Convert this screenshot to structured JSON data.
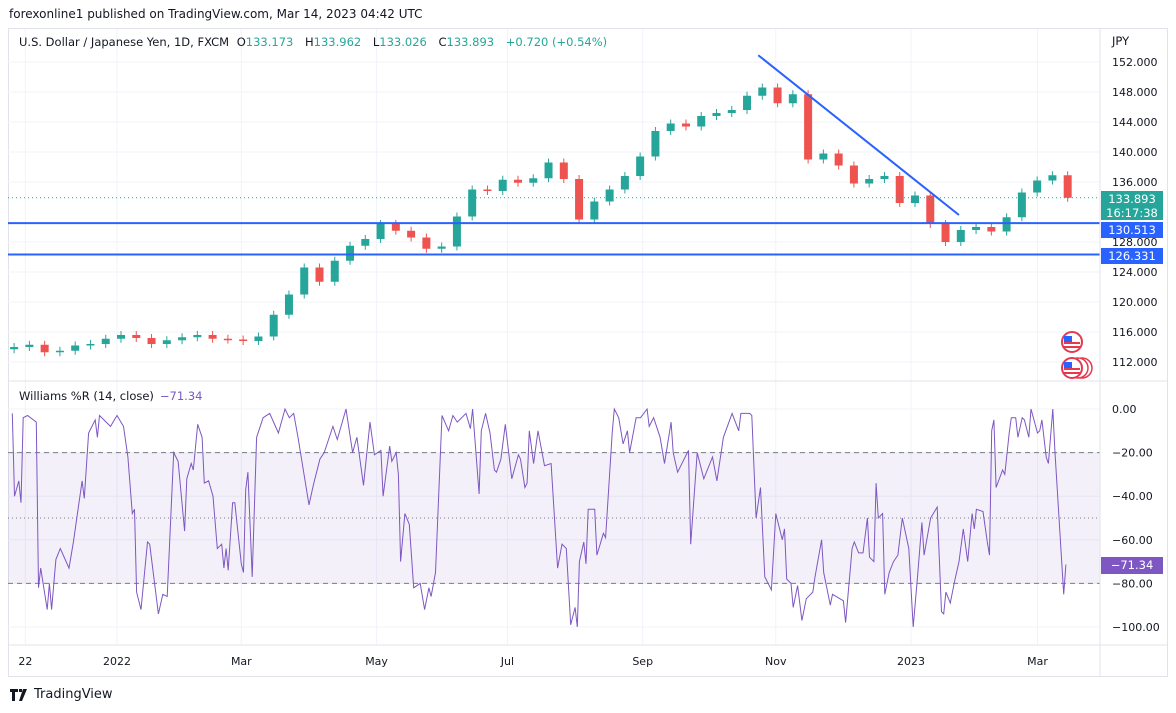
{
  "publisher_line": "forexonline1 published on TradingView.com, Mar 14, 2023 04:42 UTC",
  "legend": {
    "symbol": "U.S. Dollar / Japanese Yen, 1D, FXCM",
    "o_label": "O",
    "o": "133.173",
    "h_label": "H",
    "h": "133.962",
    "l_label": "L",
    "l": "133.026",
    "c_label": "C",
    "c": "133.893",
    "change": "+0.720 (+0.54%)"
  },
  "currency": "JPY",
  "last_price_label": "133.893",
  "countdown": "16:17:38",
  "williams_legend": {
    "name": "Williams %R (14, close)",
    "value": "−71.34"
  },
  "williams_last_label": "−71.34",
  "footer": {
    "brand": "TradingView"
  },
  "colors": {
    "up": "#26a69a",
    "down": "#ef5350",
    "drawing": "#2962ff",
    "williams": "#7e57c2",
    "grid": "#f0f3fa"
  },
  "icons": [
    "tradingview-logo-icon",
    "us-flag-event-icon",
    "us-flag-events-stack-icon"
  ],
  "chart_data": [
    {
      "type": "candlestick",
      "interval": "1D (rendered as weekly closes)",
      "y_ticks": [
        "152.000",
        "148.000",
        "144.000",
        "140.000",
        "136.000",
        "128.000",
        "124.000",
        "120.000",
        "116.000",
        "112.000"
      ],
      "y_tick_values": [
        152,
        148,
        144,
        140,
        136,
        128,
        124,
        120,
        116,
        112
      ],
      "ylim": [
        110,
        153.5
      ],
      "x_ticks": [
        {
          "label": "22",
          "date": "2021-11-22"
        },
        {
          "label": "2022",
          "date": "2022-01-03"
        },
        {
          "label": "Mar",
          "date": "2022-03-01"
        },
        {
          "label": "May",
          "date": "2022-05-02"
        },
        {
          "label": "Jul",
          "date": "2022-07-01"
        },
        {
          "label": "Sep",
          "date": "2022-09-01"
        },
        {
          "label": "Nov",
          "date": "2022-11-01"
        },
        {
          "label": "2023",
          "date": "2023-01-02"
        },
        {
          "label": "Mar",
          "date": "2023-03-01"
        }
      ],
      "weeks": [
        "2021-11-15",
        "2021-11-22",
        "2021-11-29",
        "2021-12-06",
        "2021-12-13",
        "2021-12-20",
        "2021-12-27",
        "2022-01-03",
        "2022-01-10",
        "2022-01-17",
        "2022-01-24",
        "2022-01-31",
        "2022-02-07",
        "2022-02-14",
        "2022-02-21",
        "2022-02-28",
        "2022-03-07",
        "2022-03-14",
        "2022-03-21",
        "2022-03-28",
        "2022-04-04",
        "2022-04-11",
        "2022-04-18",
        "2022-04-25",
        "2022-05-02",
        "2022-05-09",
        "2022-05-16",
        "2022-05-23",
        "2022-05-30",
        "2022-06-06",
        "2022-06-13",
        "2022-06-20",
        "2022-06-27",
        "2022-07-04",
        "2022-07-11",
        "2022-07-18",
        "2022-07-25",
        "2022-08-01",
        "2022-08-08",
        "2022-08-15",
        "2022-08-22",
        "2022-08-29",
        "2022-09-05",
        "2022-09-12",
        "2022-09-19",
        "2022-09-26",
        "2022-10-03",
        "2022-10-10",
        "2022-10-17",
        "2022-10-24",
        "2022-10-31",
        "2022-11-07",
        "2022-11-14",
        "2022-11-21",
        "2022-11-28",
        "2022-12-05",
        "2022-12-12",
        "2022-12-19",
        "2022-12-26",
        "2023-01-02",
        "2023-01-09",
        "2023-01-16",
        "2023-01-23",
        "2023-01-30",
        "2023-02-06",
        "2023-02-13",
        "2023-02-20",
        "2023-02-27",
        "2023-03-06",
        "2023-03-13"
      ],
      "close": [
        114.0,
        114.3,
        113.3,
        113.5,
        114.2,
        114.4,
        115.1,
        115.6,
        115.2,
        114.4,
        114.9,
        115.3,
        115.6,
        115.1,
        115.0,
        114.8,
        115.4,
        118.3,
        121.0,
        124.6,
        122.7,
        125.5,
        127.5,
        128.4,
        130.4,
        129.5,
        128.6,
        127.1,
        127.4,
        131.4,
        135.0,
        134.8,
        136.3,
        135.9,
        136.5,
        138.6,
        136.4,
        131.0,
        133.4,
        135.0,
        136.8,
        139.4,
        142.8,
        143.8,
        143.4,
        144.8,
        145.2,
        145.6,
        147.5,
        148.6,
        146.5,
        147.7,
        139.0,
        139.8,
        138.2,
        135.8,
        136.4,
        136.8,
        133.2,
        134.2,
        130.4,
        128.0,
        129.6,
        130.0,
        129.4,
        131.3,
        134.6,
        136.2,
        136.9,
        133.893
      ],
      "last_close": 133.893,
      "horizontal_lines": [
        130.513,
        126.331
      ],
      "trend_line": {
        "from": {
          "date": "2022-10-24",
          "price": 152.9
        },
        "to": {
          "date": "2023-01-24",
          "price": 131.6
        }
      }
    },
    {
      "type": "line",
      "name": "Williams %R (14, close)",
      "y_ticks": [
        "0.00",
        "−20.00",
        "−40.00",
        "−60.00",
        "−80.00",
        "−100.00"
      ],
      "y_tick_values": [
        0,
        -20,
        -40,
        -60,
        -80,
        -100
      ],
      "ylim": [
        -108,
        0
      ],
      "upper_band": -20,
      "middle_band": -50,
      "lower_band": -80,
      "points": [
        [
          "2021-11-16",
          -2
        ],
        [
          "2021-11-17",
          -40
        ],
        [
          "2021-11-19",
          -33
        ],
        [
          "2021-11-20",
          -43
        ],
        [
          "2021-11-21",
          -4
        ],
        [
          "2021-11-23",
          -3
        ],
        [
          "2021-11-27",
          -6
        ],
        [
          "2021-11-28",
          -82
        ],
        [
          "2021-11-29",
          -73
        ],
        [
          "2021-12-02",
          -92
        ],
        [
          "2021-12-03",
          -80
        ],
        [
          "2021-12-04",
          -92
        ],
        [
          "2021-12-06",
          -69
        ],
        [
          "2021-12-08",
          -64
        ],
        [
          "2021-12-12",
          -73
        ],
        [
          "2021-12-14",
          -61
        ],
        [
          "2021-12-18",
          -33
        ],
        [
          "2021-12-19",
          -41
        ],
        [
          "2021-12-21",
          -11
        ],
        [
          "2021-12-24",
          -5
        ],
        [
          "2021-12-25",
          -13
        ],
        [
          "2021-12-26",
          -3
        ],
        [
          "2021-12-31",
          -8
        ],
        [
          "2022-01-03",
          -3
        ],
        [
          "2022-01-06",
          -8
        ],
        [
          "2022-01-08",
          -22
        ],
        [
          "2022-01-10",
          -48
        ],
        [
          "2022-01-11",
          -46
        ],
        [
          "2022-01-12",
          -84
        ],
        [
          "2022-01-14",
          -92
        ],
        [
          "2022-01-17",
          -61
        ],
        [
          "2022-01-18",
          -62
        ],
        [
          "2022-01-22",
          -94
        ],
        [
          "2022-01-24",
          -85
        ],
        [
          "2022-01-26",
          -86
        ],
        [
          "2022-01-29",
          -20
        ],
        [
          "2022-01-31",
          -24
        ],
        [
          "2022-02-03",
          -56
        ],
        [
          "2022-02-04",
          -32
        ],
        [
          "2022-02-06",
          -25
        ],
        [
          "2022-02-07",
          -28
        ],
        [
          "2022-02-09",
          -7
        ],
        [
          "2022-02-11",
          -13
        ],
        [
          "2022-02-12",
          -34
        ],
        [
          "2022-02-14",
          -33
        ],
        [
          "2022-02-16",
          -40
        ],
        [
          "2022-02-18",
          -64
        ],
        [
          "2022-02-20",
          -62
        ],
        [
          "2022-02-21",
          -73
        ],
        [
          "2022-02-22",
          -64
        ],
        [
          "2022-02-23",
          -74
        ],
        [
          "2022-02-25",
          -43
        ],
        [
          "2022-02-26",
          -43
        ],
        [
          "2022-03-01",
          -71
        ],
        [
          "2022-03-02",
          -75
        ],
        [
          "2022-03-03",
          -37
        ],
        [
          "2022-03-04",
          -29
        ],
        [
          "2022-03-06",
          -77
        ],
        [
          "2022-03-08",
          -13
        ],
        [
          "2022-03-11",
          -4
        ],
        [
          "2022-03-14",
          -2
        ],
        [
          "2022-03-18",
          -11
        ],
        [
          "2022-03-21",
          0
        ],
        [
          "2022-03-23",
          -4
        ],
        [
          "2022-03-25",
          -2
        ],
        [
          "2022-03-27",
          -13
        ],
        [
          "2022-04-01",
          -44
        ],
        [
          "2022-04-03",
          -35
        ],
        [
          "2022-04-06",
          -23
        ],
        [
          "2022-04-08",
          -20
        ],
        [
          "2022-04-12",
          -8
        ],
        [
          "2022-04-14",
          -14
        ],
        [
          "2022-04-18",
          0
        ],
        [
          "2022-04-21",
          -20
        ],
        [
          "2022-04-23",
          -13
        ],
        [
          "2022-04-26",
          -35
        ],
        [
          "2022-04-29",
          -6
        ],
        [
          "2022-05-01",
          -21
        ],
        [
          "2022-05-04",
          -19
        ],
        [
          "2022-05-05",
          -40
        ],
        [
          "2022-05-08",
          -17
        ],
        [
          "2022-05-09",
          -24
        ],
        [
          "2022-05-11",
          -20
        ],
        [
          "2022-05-12",
          -30
        ],
        [
          "2022-05-13",
          -70
        ],
        [
          "2022-05-15",
          -48
        ],
        [
          "2022-05-17",
          -53
        ],
        [
          "2022-05-19",
          -82
        ],
        [
          "2022-05-22",
          -80
        ],
        [
          "2022-05-24",
          -92
        ],
        [
          "2022-05-26",
          -82
        ],
        [
          "2022-05-27",
          -86
        ],
        [
          "2022-05-29",
          -75
        ],
        [
          "2022-06-01",
          -3
        ],
        [
          "2022-06-04",
          -10
        ],
        [
          "2022-06-06",
          -3
        ],
        [
          "2022-06-08",
          -6
        ],
        [
          "2022-06-12",
          -2
        ],
        [
          "2022-06-14",
          -9
        ],
        [
          "2022-06-15",
          0
        ],
        [
          "2022-06-18",
          -39
        ],
        [
          "2022-06-19",
          -10
        ],
        [
          "2022-06-21",
          -2
        ],
        [
          "2022-06-23",
          -11
        ],
        [
          "2022-06-25",
          -28
        ],
        [
          "2022-06-26",
          -29
        ],
        [
          "2022-06-28",
          -23
        ],
        [
          "2022-06-30",
          -7
        ],
        [
          "2022-07-03",
          -32
        ],
        [
          "2022-07-06",
          -21
        ],
        [
          "2022-07-07",
          -23
        ],
        [
          "2022-07-09",
          -36
        ],
        [
          "2022-07-10",
          -34
        ],
        [
          "2022-07-11",
          -10
        ],
        [
          "2022-07-13",
          -25
        ],
        [
          "2022-07-15",
          -10
        ],
        [
          "2022-07-18",
          -26
        ],
        [
          "2022-07-21",
          -25
        ],
        [
          "2022-07-24",
          -73
        ],
        [
          "2022-07-26",
          -62
        ],
        [
          "2022-07-28",
          -64
        ],
        [
          "2022-07-30",
          -99
        ],
        [
          "2022-08-01",
          -91
        ],
        [
          "2022-08-02",
          -100
        ],
        [
          "2022-08-03",
          -70
        ],
        [
          "2022-08-05",
          -61
        ],
        [
          "2022-08-06",
          -71
        ],
        [
          "2022-08-07",
          -46
        ],
        [
          "2022-08-10",
          -46
        ],
        [
          "2022-08-11",
          -67
        ],
        [
          "2022-08-14",
          -57
        ],
        [
          "2022-08-15",
          -59
        ],
        [
          "2022-08-18",
          -11
        ],
        [
          "2022-08-19",
          0
        ],
        [
          "2022-08-21",
          -4
        ],
        [
          "2022-08-23",
          -16
        ],
        [
          "2022-08-25",
          -10
        ],
        [
          "2022-08-26",
          -20
        ],
        [
          "2022-08-29",
          -4
        ],
        [
          "2022-08-31",
          -4
        ],
        [
          "2022-09-03",
          0
        ],
        [
          "2022-09-04",
          -8
        ],
        [
          "2022-09-06",
          -4
        ],
        [
          "2022-09-09",
          -13
        ],
        [
          "2022-09-11",
          -25
        ],
        [
          "2022-09-14",
          -6
        ],
        [
          "2022-09-15",
          -20
        ],
        [
          "2022-09-17",
          -29
        ],
        [
          "2022-09-22",
          -19
        ],
        [
          "2022-09-23",
          -62
        ],
        [
          "2022-09-26",
          -20
        ],
        [
          "2022-09-29",
          -32
        ],
        [
          "2022-10-03",
          -22
        ],
        [
          "2022-10-05",
          -33
        ],
        [
          "2022-10-08",
          -13
        ],
        [
          "2022-10-12",
          -2
        ],
        [
          "2022-10-15",
          -10
        ],
        [
          "2022-10-16",
          -2
        ],
        [
          "2022-10-20",
          -2
        ],
        [
          "2022-10-21",
          -3
        ],
        [
          "2022-10-23",
          -50
        ],
        [
          "2022-10-25",
          -36
        ],
        [
          "2022-10-27",
          -77
        ],
        [
          "2022-10-30",
          -83
        ],
        [
          "2022-11-01",
          -48
        ],
        [
          "2022-11-04",
          -60
        ],
        [
          "2022-11-05",
          -55
        ],
        [
          "2022-11-06",
          -78
        ],
        [
          "2022-11-08",
          -80
        ],
        [
          "2022-11-09",
          -91
        ],
        [
          "2022-11-11",
          -81
        ],
        [
          "2022-11-13",
          -97
        ],
        [
          "2022-11-15",
          -87
        ],
        [
          "2022-11-18",
          -84
        ],
        [
          "2022-11-19",
          -77
        ],
        [
          "2022-11-22",
          -60
        ],
        [
          "2022-11-23",
          -75
        ],
        [
          "2022-11-26",
          -90
        ],
        [
          "2022-11-27",
          -85
        ],
        [
          "2022-12-02",
          -88
        ],
        [
          "2022-12-03",
          -98
        ],
        [
          "2022-12-06",
          -64
        ],
        [
          "2022-12-07",
          -61
        ],
        [
          "2022-12-09",
          -66
        ],
        [
          "2022-12-11",
          -66
        ],
        [
          "2022-12-13",
          -50
        ],
        [
          "2022-12-14",
          -68
        ],
        [
          "2022-12-16",
          -70
        ],
        [
          "2022-12-17",
          -34
        ],
        [
          "2022-12-18",
          -50
        ],
        [
          "2022-12-20",
          -48
        ],
        [
          "2022-12-21",
          -85
        ],
        [
          "2022-12-23",
          -75
        ],
        [
          "2022-12-25",
          -70
        ],
        [
          "2022-12-27",
          -67
        ],
        [
          "2022-12-29",
          -50
        ],
        [
          "2023-01-01",
          -64
        ],
        [
          "2023-01-03",
          -100
        ],
        [
          "2023-01-05",
          -77
        ],
        [
          "2023-01-07",
          -52
        ],
        [
          "2023-01-08",
          -67
        ],
        [
          "2023-01-11",
          -50
        ],
        [
          "2023-01-14",
          -45
        ],
        [
          "2023-01-16",
          -93
        ],
        [
          "2023-01-17",
          -94
        ],
        [
          "2023-01-18",
          -84
        ],
        [
          "2023-01-20",
          -89
        ],
        [
          "2023-01-22",
          -79
        ],
        [
          "2023-01-24",
          -70
        ],
        [
          "2023-01-26",
          -55
        ],
        [
          "2023-01-28",
          -70
        ],
        [
          "2023-01-30",
          -48
        ],
        [
          "2023-01-31",
          -55
        ],
        [
          "2023-02-01",
          -46
        ],
        [
          "2023-02-04",
          -47
        ],
        [
          "2023-02-06",
          -61
        ],
        [
          "2023-02-07",
          -67
        ],
        [
          "2023-02-08",
          -10
        ],
        [
          "2023-02-09",
          -5
        ],
        [
          "2023-02-10",
          -36
        ],
        [
          "2023-02-13",
          -28
        ],
        [
          "2023-02-14",
          -30
        ],
        [
          "2023-02-16",
          -11
        ],
        [
          "2023-02-17",
          -4
        ],
        [
          "2023-02-19",
          -4
        ],
        [
          "2023-02-20",
          -13
        ],
        [
          "2023-02-22",
          -4
        ],
        [
          "2023-02-23",
          -5
        ],
        [
          "2023-02-25",
          -13
        ],
        [
          "2023-02-26",
          0
        ],
        [
          "2023-03-01",
          -11
        ],
        [
          "2023-03-02",
          -10
        ],
        [
          "2023-03-03",
          -5
        ],
        [
          "2023-03-05",
          -22
        ],
        [
          "2023-03-06",
          -25
        ],
        [
          "2023-03-08",
          0
        ],
        [
          "2023-03-09",
          -20
        ],
        [
          "2023-03-13",
          -85
        ],
        [
          "2023-03-14",
          -71.34
        ]
      ],
      "last_value": -71.34
    }
  ]
}
